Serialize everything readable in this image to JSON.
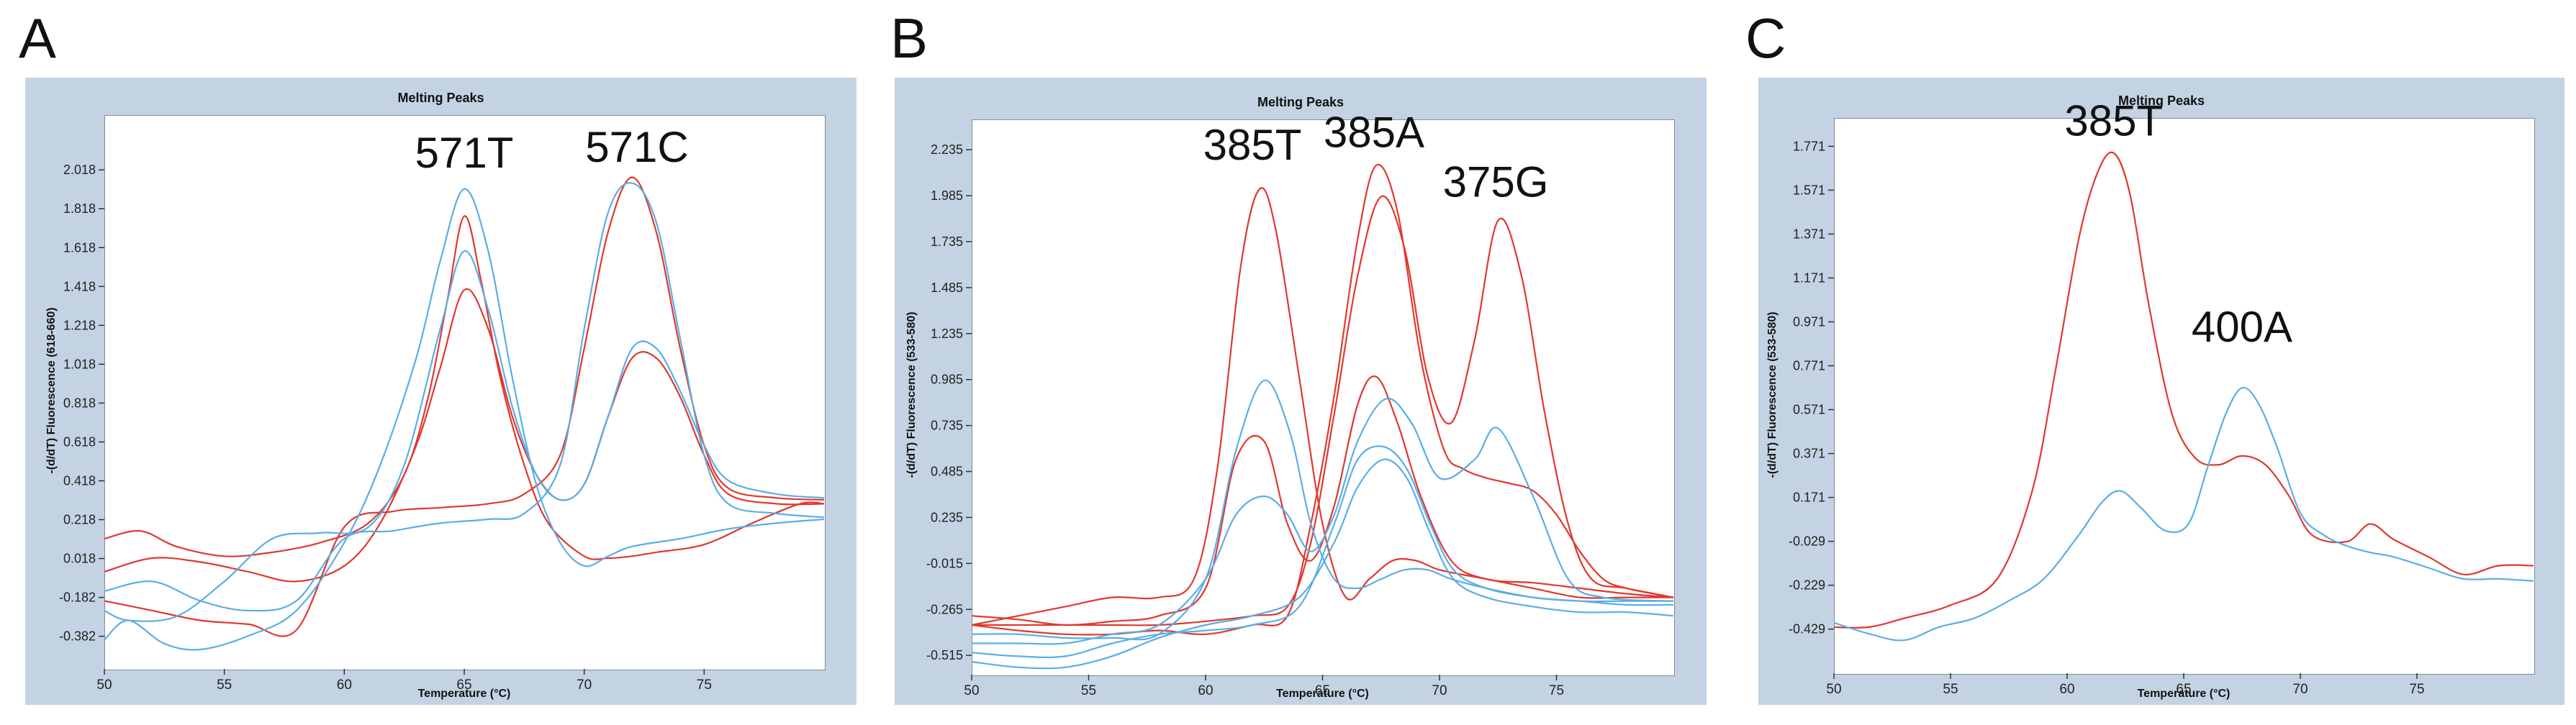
{
  "panels": [
    {
      "letter": "A"
    },
    {
      "letter": "B"
    },
    {
      "letter": "C"
    }
  ],
  "chart_data": [
    {
      "type": "line",
      "title": "Melting Peaks",
      "xlabel": "Temperature (°C)",
      "ylabel": "-(d/dT) Fluorescence (618-660)",
      "xlim": [
        50,
        80
      ],
      "ylim": [
        -0.55,
        2.3
      ],
      "x_ticks": [
        "50",
        "55",
        "60",
        "65",
        "70",
        "75"
      ],
      "y_ticks": [
        "2.018",
        "1.818",
        "1.618",
        "1.418",
        "1.218",
        "1.018",
        "0.818",
        "0.618",
        "0.418",
        "0.218",
        "0.018",
        "-0.182",
        "-0.382"
      ],
      "grid": false,
      "annotations": [
        {
          "text": "571T",
          "x": 65.0,
          "y": 2.03
        },
        {
          "text": "571C",
          "x": 72.2,
          "y": 2.06
        }
      ],
      "colors": {
        "red": "#e0382e",
        "blue": "#5aaee6"
      },
      "series": [
        {
          "color": "red",
          "x": [
            50,
            51.5,
            53,
            55,
            57,
            59,
            61,
            62.5,
            63.5,
            64.3,
            65,
            65.7,
            66.5,
            67.5,
            68.5,
            70,
            71,
            72,
            73,
            75,
            77,
            79,
            80
          ],
          "values": [
            0.12,
            0.16,
            0.08,
            0.03,
            0.05,
            0.1,
            0.2,
            0.45,
            0.85,
            1.35,
            1.78,
            1.45,
            0.95,
            0.5,
            0.2,
            0.03,
            0.02,
            0.03,
            0.05,
            0.09,
            0.2,
            0.3,
            0.3
          ]
        },
        {
          "color": "red",
          "x": [
            50,
            52,
            54,
            56,
            58,
            60,
            61.5,
            63,
            64,
            65,
            66,
            67,
            68,
            69,
            70,
            71,
            72,
            73,
            74,
            75,
            76,
            78,
            80
          ],
          "values": [
            -0.05,
            0.02,
            0.0,
            -0.05,
            -0.1,
            -0.02,
            0.2,
            0.6,
            1.0,
            1.4,
            1.2,
            0.75,
            0.45,
            0.32,
            0.4,
            0.75,
            1.05,
            1.05,
            0.85,
            0.55,
            0.35,
            0.3,
            0.3
          ]
        },
        {
          "color": "red",
          "x": [
            50,
            52,
            54,
            56,
            58,
            60,
            62,
            64,
            66,
            67.5,
            69,
            70,
            71,
            72,
            73,
            74,
            75,
            76,
            78,
            80
          ],
          "values": [
            -0.2,
            -0.25,
            -0.3,
            -0.32,
            -0.35,
            0.18,
            0.26,
            0.28,
            0.3,
            0.35,
            0.55,
            1.1,
            1.7,
            1.98,
            1.7,
            1.1,
            0.6,
            0.38,
            0.33,
            0.32
          ]
        },
        {
          "color": "blue",
          "x": [
            50,
            51,
            52.5,
            54,
            56,
            58,
            60,
            61.5,
            63,
            64,
            65,
            66,
            67,
            68,
            69,
            70,
            71,
            72,
            74,
            76,
            78,
            80
          ],
          "values": [
            -0.4,
            -0.3,
            -0.42,
            -0.45,
            -0.38,
            -0.25,
            0.1,
            0.5,
            1.05,
            1.55,
            1.92,
            1.6,
            0.95,
            0.4,
            0.1,
            -0.02,
            0.03,
            0.08,
            0.12,
            0.17,
            0.2,
            0.22
          ]
        },
        {
          "color": "blue",
          "x": [
            50,
            51,
            53,
            55,
            57,
            59,
            61,
            62.5,
            64,
            65,
            66,
            67,
            68,
            69,
            70,
            71,
            72,
            73,
            74,
            75,
            76,
            78,
            80
          ],
          "values": [
            -0.25,
            -0.3,
            -0.28,
            -0.1,
            0.12,
            0.15,
            0.18,
            0.5,
            1.2,
            1.6,
            1.3,
            0.8,
            0.45,
            0.32,
            0.4,
            0.75,
            1.1,
            1.1,
            0.88,
            0.6,
            0.42,
            0.35,
            0.33
          ]
        },
        {
          "color": "blue",
          "x": [
            50,
            52,
            54,
            56,
            58,
            60,
            62,
            64,
            66,
            67.5,
            69,
            70,
            71,
            72,
            73,
            74,
            75,
            76,
            78,
            80
          ],
          "values": [
            -0.15,
            -0.1,
            -0.2,
            -0.25,
            -0.2,
            0.12,
            0.16,
            0.2,
            0.22,
            0.25,
            0.5,
            1.2,
            1.8,
            1.95,
            1.75,
            1.15,
            0.55,
            0.3,
            0.25,
            0.23
          ]
        }
      ]
    },
    {
      "type": "line",
      "title": "Melting Peaks",
      "xlabel": "Temperature (°C)",
      "ylabel": "-(d/dT) Fluorescence (533-580)",
      "xlim": [
        50,
        80
      ],
      "ylim": [
        -0.62,
        2.4
      ],
      "x_ticks": [
        "50",
        "55",
        "60",
        "65",
        "70",
        "75"
      ],
      "y_ticks": [
        "2.235",
        "1.985",
        "1.735",
        "1.485",
        "1.235",
        "0.985",
        "0.735",
        "0.485",
        "0.235",
        "-0.015",
        "-0.265",
        "-0.515"
      ],
      "grid": false,
      "annotations": [
        {
          "text": "385T",
          "x": 62.0,
          "y": 2.18
        },
        {
          "text": "385A",
          "x": 67.2,
          "y": 2.25
        },
        {
          "text": "375G",
          "x": 72.4,
          "y": 1.98
        }
      ],
      "colors": {
        "red": "#e0382e",
        "blue": "#5aaee6"
      },
      "series": [
        {
          "color": "red",
          "x": [
            50,
            52,
            54,
            56,
            58,
            59.5,
            60.5,
            61.5,
            62.3,
            63,
            64,
            65,
            66,
            67,
            68,
            69,
            70,
            72,
            74,
            76,
            78,
            80
          ],
          "values": [
            -0.35,
            -0.3,
            -0.25,
            -0.2,
            -0.2,
            -0.1,
            0.5,
            1.6,
            2.02,
            1.8,
            1.0,
            0.2,
            -0.2,
            -0.1,
            0.0,
            0.0,
            -0.05,
            -0.1,
            -0.15,
            -0.2,
            -0.2,
            -0.2
          ]
        },
        {
          "color": "red",
          "x": [
            50,
            52,
            54,
            56,
            58,
            60,
            61.3,
            62.5,
            63.5,
            64.5,
            65.5,
            66.5,
            67.3,
            68.2,
            69.2,
            70.5,
            72,
            74,
            76,
            78,
            80
          ],
          "values": [
            -0.3,
            -0.32,
            -0.35,
            -0.33,
            -0.3,
            -0.15,
            0.55,
            0.65,
            0.2,
            0.0,
            0.3,
            0.85,
            1.0,
            0.75,
            0.35,
            0.0,
            -0.1,
            -0.12,
            -0.15,
            -0.18,
            -0.2
          ]
        },
        {
          "color": "red",
          "x": [
            50,
            52,
            54,
            56,
            58,
            60,
            62,
            63.5,
            64.5,
            65.5,
            66.5,
            67.3,
            68.2,
            69.2,
            70.2,
            71,
            72,
            73,
            74,
            75,
            76,
            77,
            78,
            80
          ],
          "values": [
            -0.35,
            -0.38,
            -0.4,
            -0.4,
            -0.38,
            -0.4,
            -0.35,
            -0.3,
            0.2,
            0.9,
            1.75,
            2.15,
            1.9,
            1.1,
            0.6,
            0.5,
            0.45,
            0.42,
            0.38,
            0.25,
            0.05,
            -0.1,
            -0.15,
            -0.2
          ]
        },
        {
          "color": "red",
          "x": [
            50,
            52,
            54,
            56,
            58,
            60,
            62,
            63.5,
            64.5,
            65.5,
            66.5,
            67.5,
            68.5,
            69.5,
            70.5,
            71.5,
            72.5,
            73.5,
            74.5,
            75.5,
            76.5,
            78,
            80
          ],
          "values": [
            -0.35,
            -0.35,
            -0.35,
            -0.35,
            -0.35,
            -0.33,
            -0.3,
            -0.25,
            0.1,
            0.8,
            1.55,
            1.98,
            1.7,
            1.0,
            0.75,
            1.2,
            1.85,
            1.55,
            0.8,
            0.2,
            -0.1,
            -0.15,
            -0.2
          ]
        },
        {
          "color": "blue",
          "x": [
            50,
            52,
            54,
            56,
            58,
            60,
            61.3,
            62.5,
            63.6,
            64.5,
            65.5,
            66.5,
            67.5,
            68.5,
            69.5,
            70.5,
            72,
            74,
            76,
            78,
            80
          ],
          "values": [
            -0.4,
            -0.4,
            -0.42,
            -0.42,
            -0.4,
            -0.1,
            0.6,
            0.98,
            0.7,
            0.2,
            -0.1,
            -0.15,
            -0.1,
            -0.05,
            -0.05,
            -0.1,
            -0.15,
            -0.2,
            -0.22,
            -0.22,
            -0.22
          ]
        },
        {
          "color": "blue",
          "x": [
            50,
            52,
            54,
            56,
            58,
            60,
            61.3,
            62.5,
            63.5,
            64.5,
            65.5,
            66.5,
            67.7,
            68.8,
            70,
            71.5,
            72.5,
            74,
            75.5,
            77,
            80
          ],
          "values": [
            -0.45,
            -0.45,
            -0.45,
            -0.4,
            -0.35,
            -0.1,
            0.25,
            0.35,
            0.25,
            0.05,
            0.25,
            0.65,
            0.88,
            0.75,
            0.45,
            0.55,
            0.72,
            0.35,
            -0.1,
            -0.2,
            -0.22
          ]
        },
        {
          "color": "blue",
          "x": [
            50,
            52,
            54,
            56,
            58,
            60,
            62,
            64,
            65.5,
            66.5,
            67.6,
            68.6,
            69.6,
            70.6,
            72,
            74,
            76,
            78,
            80
          ],
          "values": [
            -0.5,
            -0.52,
            -0.52,
            -0.45,
            -0.4,
            -0.38,
            -0.35,
            -0.25,
            0.2,
            0.55,
            0.62,
            0.5,
            0.2,
            -0.05,
            -0.15,
            -0.2,
            -0.22,
            -0.24,
            -0.24
          ]
        },
        {
          "color": "blue",
          "x": [
            50,
            52,
            54,
            56,
            58,
            60,
            62,
            64,
            65.5,
            66.5,
            67.6,
            68.6,
            69.6,
            70.6,
            72,
            74,
            76,
            78,
            80
          ],
          "values": [
            -0.55,
            -0.58,
            -0.58,
            -0.52,
            -0.42,
            -0.35,
            -0.3,
            -0.2,
            0.1,
            0.4,
            0.55,
            0.45,
            0.15,
            -0.1,
            -0.2,
            -0.25,
            -0.28,
            -0.28,
            -0.3
          ]
        }
      ]
    },
    {
      "type": "line",
      "title": "Melting Peaks",
      "xlabel": "Temperature (°C)",
      "ylabel": "-(d/dT) Fluorescence (533-580)",
      "xlim": [
        50,
        80
      ],
      "ylim": [
        -0.63,
        1.9
      ],
      "x_ticks": [
        "50",
        "55",
        "60",
        "65",
        "70",
        "75"
      ],
      "y_ticks": [
        "1.771",
        "1.571",
        "1.371",
        "1.171",
        "0.971",
        "0.771",
        "0.571",
        "0.371",
        "0.171",
        "-0.029",
        "-0.229",
        "-0.429"
      ],
      "grid": false,
      "annotations": [
        {
          "text": "385T",
          "x": 62.0,
          "y": 1.82
        },
        {
          "text": "400A",
          "x": 67.5,
          "y": 0.88
        }
      ],
      "colors": {
        "red": "#e0382e",
        "blue": "#5aaee6"
      },
      "series": [
        {
          "color": "red",
          "x": [
            50,
            51.5,
            53,
            55,
            57,
            58.5,
            59.5,
            60.5,
            61.3,
            62,
            62.7,
            63.5,
            64.5,
            65.5,
            66.5,
            67.5,
            68.5,
            69.5,
            70.5,
            72,
            73,
            74,
            75.5,
            77,
            78.5,
            80
          ],
          "values": [
            -0.42,
            -0.42,
            -0.38,
            -0.32,
            -0.2,
            0.2,
            0.75,
            1.35,
            1.65,
            1.74,
            1.55,
            1.05,
            0.55,
            0.35,
            0.32,
            0.36,
            0.32,
            0.18,
            0.0,
            -0.03,
            0.05,
            -0.02,
            -0.1,
            -0.18,
            -0.14,
            -0.14
          ]
        },
        {
          "color": "blue",
          "x": [
            50,
            51.5,
            53,
            54.5,
            56,
            57.5,
            59,
            60.5,
            61.5,
            62.3,
            63.2,
            64.2,
            65.2,
            66,
            66.8,
            67.5,
            68.2,
            69,
            70,
            71,
            72,
            73,
            74,
            75.5,
            77,
            78.5,
            80
          ],
          "values": [
            -0.4,
            -0.45,
            -0.48,
            -0.42,
            -0.38,
            -0.3,
            -0.2,
            0.0,
            0.15,
            0.2,
            0.12,
            0.02,
            0.05,
            0.3,
            0.55,
            0.67,
            0.6,
            0.4,
            0.1,
            0.0,
            -0.05,
            -0.08,
            -0.1,
            -0.15,
            -0.2,
            -0.2,
            -0.21
          ]
        }
      ]
    }
  ]
}
